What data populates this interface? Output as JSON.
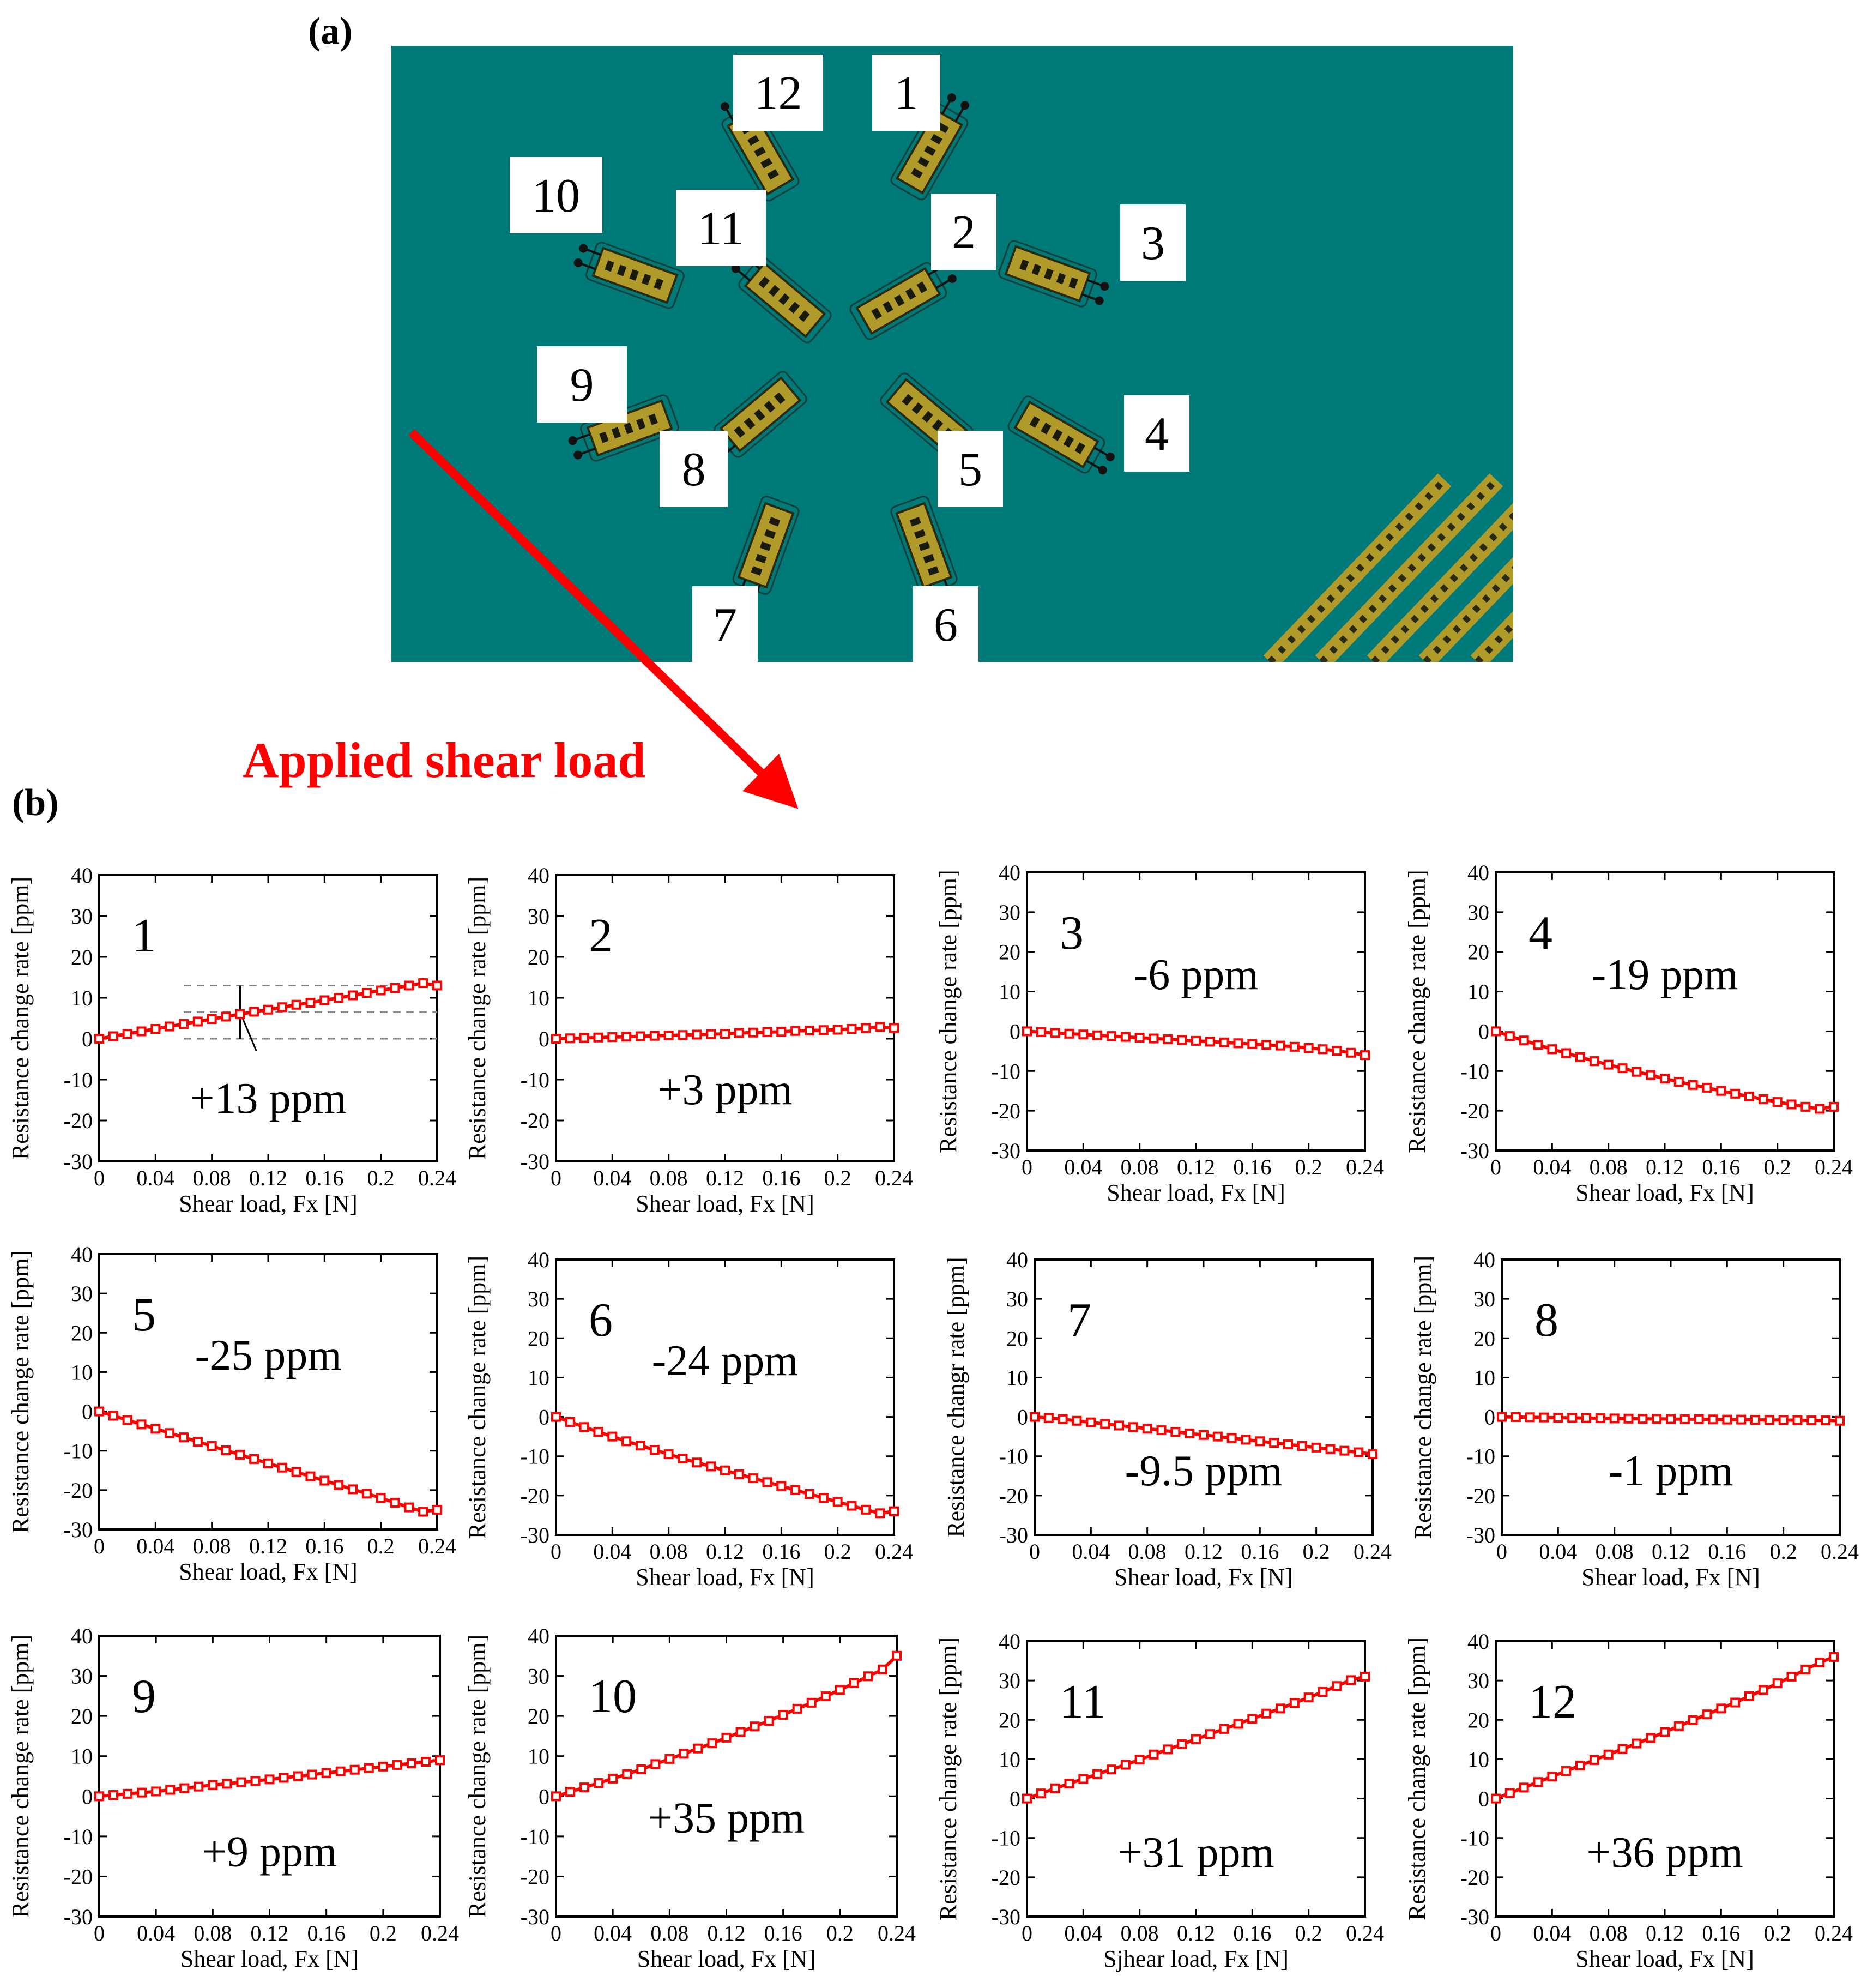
{
  "figure": {
    "panel_a": "(a)",
    "panel_b": "(b)",
    "arrow_label": "Applied shear load"
  },
  "colors": {
    "board": "#007a78",
    "gauge": "#b09a2a",
    "series": "#ff0000",
    "arrow": "#ff0000"
  },
  "layout_a": {
    "sensors": [
      {
        "id": "1",
        "angle": -60
      },
      {
        "id": "2",
        "angle": -30
      },
      {
        "id": "3",
        "angle": 20
      },
      {
        "id": "4",
        "angle": 30
      },
      {
        "id": "5",
        "angle": 40
      },
      {
        "id": "6",
        "angle": 70
      },
      {
        "id": "7",
        "angle": 110
      },
      {
        "id": "8",
        "angle": 140
      },
      {
        "id": "9",
        "angle": 160
      },
      {
        "id": "10",
        "angle": 200
      },
      {
        "id": "11",
        "angle": 220
      },
      {
        "id": "12",
        "angle": 240
      }
    ]
  },
  "chart_data": [
    {
      "type": "line",
      "number": "1",
      "annotation": "+13 ppm",
      "xlabel": "Shear load, Fx [N]",
      "ylabel": "Resistance change rate [ppm]",
      "xlim": [
        0,
        0.24
      ],
      "ylim": [
        -30,
        40
      ],
      "xticks": [
        "0",
        "0.04",
        "0.08",
        "0.12",
        "0.16",
        "0.2",
        "0.24"
      ],
      "yticks": [
        "40",
        "30",
        "20",
        "10",
        "0",
        "-10",
        "-20",
        "-30"
      ],
      "dashed_guides": [
        13,
        6.5,
        0
      ],
      "x": [
        0,
        0.01,
        0.02,
        0.03,
        0.04,
        0.05,
        0.06,
        0.07,
        0.08,
        0.09,
        0.1,
        0.11,
        0.12,
        0.13,
        0.14,
        0.15,
        0.16,
        0.17,
        0.18,
        0.19,
        0.2,
        0.21,
        0.22,
        0.23,
        0.24
      ],
      "series": [
        {
          "values": [
            0,
            0.6,
            1.2,
            1.8,
            2.4,
            3,
            3.6,
            4.2,
            4.8,
            5.4,
            6,
            6.6,
            7.1,
            7.7,
            8.3,
            8.8,
            9.4,
            10,
            10.6,
            11.2,
            11.8,
            12.4,
            13,
            13.6,
            13
          ]
        }
      ]
    },
    {
      "type": "line",
      "number": "2",
      "annotation": "+3 ppm",
      "xlabel": "Shear load, Fx [N]",
      "ylabel": "Resistance change rate [ppm]",
      "xlim": [
        0,
        0.24
      ],
      "ylim": [
        -30,
        40
      ],
      "xticks": [
        "0",
        "0.04",
        "0.08",
        "0.12",
        "0.16",
        "0.2",
        "0.24"
      ],
      "yticks": [
        "40",
        "30",
        "20",
        "10",
        "0",
        "-10",
        "-20",
        "-30"
      ],
      "x": [
        0,
        0.01,
        0.02,
        0.03,
        0.04,
        0.05,
        0.06,
        0.07,
        0.08,
        0.09,
        0.1,
        0.11,
        0.12,
        0.13,
        0.14,
        0.15,
        0.16,
        0.17,
        0.18,
        0.19,
        0.2,
        0.21,
        0.22,
        0.23,
        0.24
      ],
      "series": [
        {
          "values": [
            0,
            0.1,
            0.2,
            0.3,
            0.4,
            0.5,
            0.6,
            0.7,
            0.8,
            0.9,
            1,
            1.1,
            1.2,
            1.4,
            1.5,
            1.6,
            1.7,
            1.9,
            2,
            2.1,
            2.2,
            2.4,
            2.6,
            2.9,
            2.6
          ]
        }
      ]
    },
    {
      "type": "line",
      "number": "3",
      "annotation": "-6 ppm",
      "xlabel": "Shear load, Fx [N]",
      "ylabel": "Resistance change rate [ppm]",
      "xlim": [
        0,
        0.24
      ],
      "ylim": [
        -30,
        40
      ],
      "xticks": [
        "0",
        "0.04",
        "0.08",
        "0.12",
        "0.16",
        "0.2",
        "0.24"
      ],
      "yticks": [
        "40",
        "30",
        "20",
        "10",
        "0",
        "-10",
        "-20",
        "-30"
      ],
      "x": [
        0,
        0.01,
        0.02,
        0.03,
        0.04,
        0.05,
        0.06,
        0.07,
        0.08,
        0.09,
        0.1,
        0.11,
        0.12,
        0.13,
        0.14,
        0.15,
        0.16,
        0.17,
        0.18,
        0.19,
        0.2,
        0.21,
        0.22,
        0.23,
        0.24
      ],
      "series": [
        {
          "values": [
            0,
            -0.2,
            -0.4,
            -0.6,
            -0.8,
            -1,
            -1.2,
            -1.4,
            -1.6,
            -1.8,
            -2,
            -2.2,
            -2.4,
            -2.6,
            -2.8,
            -3,
            -3.2,
            -3.4,
            -3.6,
            -3.9,
            -4.2,
            -4.5,
            -4.9,
            -5.4,
            -6
          ]
        }
      ]
    },
    {
      "type": "line",
      "number": "4",
      "annotation": "-19 ppm",
      "xlabel": "Shear load, Fx [N]",
      "ylabel": "Resistance change rate [ppm]",
      "xlim": [
        0,
        0.24
      ],
      "ylim": [
        -30,
        40
      ],
      "xticks": [
        "0",
        "0.04",
        "0.08",
        "0.12",
        "0.16",
        "0.2",
        "0.24"
      ],
      "yticks": [
        "40",
        "30",
        "20",
        "10",
        "0",
        "-10",
        "-20",
        "-30"
      ],
      "x": [
        0,
        0.01,
        0.02,
        0.03,
        0.04,
        0.05,
        0.06,
        0.07,
        0.08,
        0.09,
        0.1,
        0.11,
        0.12,
        0.13,
        0.14,
        0.15,
        0.16,
        0.17,
        0.18,
        0.19,
        0.2,
        0.21,
        0.22,
        0.23,
        0.24
      ],
      "series": [
        {
          "values": [
            0,
            -1.2,
            -2.3,
            -3.4,
            -4.5,
            -5.5,
            -6.5,
            -7.5,
            -8.4,
            -9.3,
            -10.2,
            -11,
            -11.9,
            -12.7,
            -13.5,
            -14.2,
            -15,
            -15.7,
            -16.4,
            -17.1,
            -17.8,
            -18.4,
            -19,
            -19.5,
            -19
          ]
        }
      ]
    },
    {
      "type": "line",
      "number": "5",
      "annotation": "-25 ppm",
      "xlabel": "Shear load, Fx [N]",
      "ylabel": "Resistance change rate [ppm]",
      "xlim": [
        0,
        0.24
      ],
      "ylim": [
        -30,
        40
      ],
      "xticks": [
        "0",
        "0.04",
        "0.08",
        "0.12",
        "0.16",
        "0.2",
        "0.24"
      ],
      "yticks": [
        "40",
        "30",
        "20",
        "10",
        "0",
        "-10",
        "-20",
        "-30"
      ],
      "x": [
        0,
        0.01,
        0.02,
        0.03,
        0.04,
        0.05,
        0.06,
        0.07,
        0.08,
        0.09,
        0.1,
        0.11,
        0.12,
        0.13,
        0.14,
        0.15,
        0.16,
        0.17,
        0.18,
        0.19,
        0.2,
        0.21,
        0.22,
        0.23,
        0.24
      ],
      "series": [
        {
          "values": [
            0,
            -1.1,
            -2.2,
            -3.3,
            -4.4,
            -5.5,
            -6.6,
            -7.7,
            -8.8,
            -9.9,
            -11,
            -12.1,
            -13.2,
            -14.3,
            -15.4,
            -16.5,
            -17.6,
            -18.7,
            -19.8,
            -20.9,
            -22,
            -23.2,
            -24.4,
            -25.5,
            -25
          ]
        }
      ]
    },
    {
      "type": "line",
      "number": "6",
      "annotation": "-24 ppm",
      "xlabel": "Shear load, Fx [N]",
      "ylabel": "Resistance change rate [ppm]",
      "xlim": [
        0,
        0.24
      ],
      "ylim": [
        -30,
        40
      ],
      "xticks": [
        "0",
        "0.04",
        "0.08",
        "0.12",
        "0.16",
        "0.2",
        "0.24"
      ],
      "yticks": [
        "40",
        "30",
        "20",
        "10",
        "0",
        "-10",
        "-20",
        "-30"
      ],
      "x": [
        0,
        0.01,
        0.02,
        0.03,
        0.04,
        0.05,
        0.06,
        0.07,
        0.08,
        0.09,
        0.1,
        0.11,
        0.12,
        0.13,
        0.14,
        0.15,
        0.16,
        0.17,
        0.18,
        0.19,
        0.2,
        0.21,
        0.22,
        0.23,
        0.24
      ],
      "series": [
        {
          "values": [
            0,
            -1.3,
            -2.6,
            -3.8,
            -5,
            -6.2,
            -7.3,
            -8.4,
            -9.5,
            -10.6,
            -11.6,
            -12.6,
            -13.6,
            -14.6,
            -15.6,
            -16.6,
            -17.6,
            -18.6,
            -19.6,
            -20.6,
            -21.6,
            -22.6,
            -23.6,
            -24.5,
            -24
          ]
        }
      ]
    },
    {
      "type": "line",
      "number": "7",
      "annotation": "-9.5 ppm",
      "xlabel": "Shear load, Fx [N]",
      "ylabel": "Resistance changr rate [ppm]",
      "xlim": [
        0,
        0.24
      ],
      "ylim": [
        -30,
        40
      ],
      "xticks": [
        "0",
        "0.04",
        "0.08",
        "0.12",
        "0.16",
        "0.2",
        "0.24"
      ],
      "yticks": [
        "40",
        "30",
        "20",
        "10",
        "0",
        "-10",
        "-20",
        "-30"
      ],
      "x": [
        0,
        0.01,
        0.02,
        0.03,
        0.04,
        0.05,
        0.06,
        0.07,
        0.08,
        0.09,
        0.1,
        0.11,
        0.12,
        0.13,
        0.14,
        0.15,
        0.16,
        0.17,
        0.18,
        0.19,
        0.2,
        0.21,
        0.22,
        0.23,
        0.24
      ],
      "series": [
        {
          "values": [
            0,
            -0.3,
            -0.6,
            -1,
            -1.4,
            -1.8,
            -2.2,
            -2.6,
            -3,
            -3.4,
            -3.8,
            -4.2,
            -4.6,
            -5,
            -5.4,
            -5.8,
            -6.2,
            -6.6,
            -7,
            -7.4,
            -7.8,
            -8.2,
            -8.6,
            -9,
            -9.5
          ]
        }
      ]
    },
    {
      "type": "line",
      "number": "8",
      "annotation": "-1 ppm",
      "xlabel": "Shear load, Fx [N]",
      "ylabel": "Resistance change rate [ppm]",
      "xlim": [
        0,
        0.24
      ],
      "ylim": [
        -30,
        40
      ],
      "xticks": [
        "0",
        "0.04",
        "0.08",
        "0.12",
        "0.16",
        "0.2",
        "0.24"
      ],
      "yticks": [
        "40",
        "30",
        "20",
        "10",
        "0",
        "-10",
        "-20",
        "-30"
      ],
      "x": [
        0,
        0.01,
        0.02,
        0.03,
        0.04,
        0.05,
        0.06,
        0.07,
        0.08,
        0.09,
        0.1,
        0.11,
        0.12,
        0.13,
        0.14,
        0.15,
        0.16,
        0.17,
        0.18,
        0.19,
        0.2,
        0.21,
        0.22,
        0.23,
        0.24
      ],
      "series": [
        {
          "values": [
            0,
            -0.05,
            -0.1,
            -0.15,
            -0.2,
            -0.25,
            -0.3,
            -0.35,
            -0.4,
            -0.45,
            -0.5,
            -0.5,
            -0.55,
            -0.6,
            -0.6,
            -0.65,
            -0.7,
            -0.7,
            -0.75,
            -0.8,
            -0.8,
            -0.85,
            -0.9,
            -0.9,
            -1
          ]
        }
      ]
    },
    {
      "type": "line",
      "number": "9",
      "annotation": "+9 ppm",
      "xlabel": "Shear load, Fx [N]",
      "ylabel": "Resistance change rate [ppm]",
      "xlim": [
        0,
        0.24
      ],
      "ylim": [
        -30,
        40
      ],
      "xticks": [
        "0",
        "0.04",
        "0.08",
        "0.12",
        "0.16",
        "0.2",
        "0.24"
      ],
      "yticks": [
        "40",
        "30",
        "20",
        "10",
        "0",
        "-10",
        "-20",
        "-30"
      ],
      "x": [
        0,
        0.01,
        0.02,
        0.03,
        0.04,
        0.05,
        0.06,
        0.07,
        0.08,
        0.09,
        0.1,
        0.11,
        0.12,
        0.13,
        0.14,
        0.15,
        0.16,
        0.17,
        0.18,
        0.19,
        0.2,
        0.21,
        0.22,
        0.23,
        0.24
      ],
      "series": [
        {
          "values": [
            0,
            0.3,
            0.6,
            0.9,
            1.2,
            1.6,
            2,
            2.4,
            2.8,
            3.1,
            3.5,
            3.8,
            4.2,
            4.6,
            5,
            5.4,
            5.8,
            6.2,
            6.6,
            7,
            7.4,
            7.8,
            8.2,
            8.6,
            9
          ]
        }
      ]
    },
    {
      "type": "line",
      "number": "10",
      "annotation": "+35 ppm",
      "xlabel": "Shear load, Fx [N]",
      "ylabel": "Resistance change rate [ppm]",
      "xlim": [
        0,
        0.24
      ],
      "ylim": [
        -30,
        40
      ],
      "xticks": [
        "0",
        "0.04",
        "0.08",
        "0.12",
        "0.16",
        "0.2",
        "0.24"
      ],
      "yticks": [
        "40",
        "30",
        "20",
        "10",
        "0",
        "-10",
        "-20",
        "-30"
      ],
      "x": [
        0,
        0.01,
        0.02,
        0.03,
        0.04,
        0.05,
        0.06,
        0.07,
        0.08,
        0.09,
        0.1,
        0.11,
        0.12,
        0.13,
        0.14,
        0.15,
        0.16,
        0.17,
        0.18,
        0.19,
        0.2,
        0.21,
        0.22,
        0.23,
        0.24
      ],
      "series": [
        {
          "values": [
            0,
            1.1,
            2.2,
            3.3,
            4.4,
            5.5,
            6.7,
            8,
            9.3,
            10.6,
            11.9,
            13.2,
            14.6,
            16,
            17.4,
            18.8,
            20.3,
            21.8,
            23.3,
            24.9,
            26.5,
            28.2,
            29.9,
            31.6,
            35
          ]
        }
      ]
    },
    {
      "type": "line",
      "number": "11",
      "annotation": "+31 ppm",
      "xlabel": "Sjhear load, Fx [N]",
      "ylabel": "Resistance change rate [ppm]",
      "xlim": [
        0,
        0.24
      ],
      "ylim": [
        -30,
        40
      ],
      "xticks": [
        "0",
        "0.04",
        "0.08",
        "0.12",
        "0.16",
        "0.2",
        "0.24"
      ],
      "yticks": [
        "40",
        "30",
        "20",
        "10",
        "0",
        "-10",
        "-20",
        "-30"
      ],
      "x": [
        0,
        0.01,
        0.02,
        0.03,
        0.04,
        0.05,
        0.06,
        0.07,
        0.08,
        0.09,
        0.1,
        0.11,
        0.12,
        0.13,
        0.14,
        0.15,
        0.16,
        0.17,
        0.18,
        0.19,
        0.2,
        0.21,
        0.22,
        0.23,
        0.24
      ],
      "series": [
        {
          "values": [
            0,
            1.3,
            2.6,
            3.8,
            5,
            6.2,
            7.4,
            8.6,
            9.9,
            11.2,
            12.5,
            13.8,
            15.1,
            16.4,
            17.7,
            19,
            20.3,
            21.6,
            22.9,
            24.3,
            25.7,
            27.1,
            28.6,
            30.1,
            31
          ]
        }
      ]
    },
    {
      "type": "line",
      "number": "12",
      "annotation": "+36 ppm",
      "xlabel": "Shear load, Fx [N]",
      "ylabel": "Resistance change rate [ppm]",
      "xlim": [
        0,
        0.24
      ],
      "ylim": [
        -30,
        40
      ],
      "xticks": [
        "0",
        "0.04",
        "0.08",
        "0.12",
        "0.16",
        "0.2",
        "0.24"
      ],
      "yticks": [
        "40",
        "30",
        "20",
        "10",
        "0",
        "-10",
        "-20",
        "-30"
      ],
      "x": [
        0,
        0.01,
        0.02,
        0.03,
        0.04,
        0.05,
        0.06,
        0.07,
        0.08,
        0.09,
        0.1,
        0.11,
        0.12,
        0.13,
        0.14,
        0.15,
        0.16,
        0.17,
        0.18,
        0.19,
        0.2,
        0.21,
        0.22,
        0.23,
        0.24
      ],
      "series": [
        {
          "values": [
            0,
            1.4,
            2.8,
            4.2,
            5.6,
            7,
            8.4,
            9.8,
            11.2,
            12.6,
            14,
            15.4,
            16.9,
            18.4,
            19.9,
            21.4,
            22.9,
            24.4,
            26,
            27.6,
            29.3,
            31,
            32.8,
            34.6,
            36
          ]
        }
      ]
    }
  ]
}
